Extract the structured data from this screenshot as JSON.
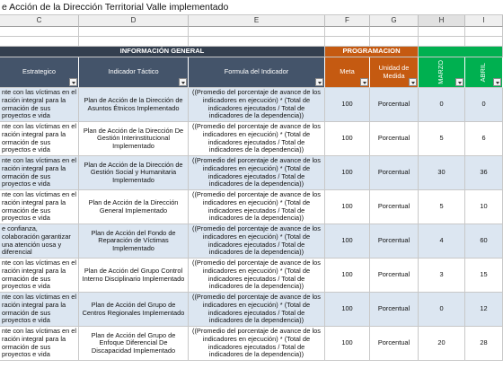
{
  "title": "e Acción de la Dirección  Territorial Valle implementado",
  "column_letters": [
    "C",
    "D",
    "E",
    "F",
    "G",
    "H",
    "I"
  ],
  "group_headers": [
    "INFORMACIÓN GENERAL",
    "PROGRAMACION"
  ],
  "headers": [
    "Estrategico",
    "Indicador Táctico",
    "Formula del Indicador",
    "Meta",
    "Unidad de Medida",
    "MARZO",
    "ABRIL"
  ],
  "rows": [
    [
      "nte con las víctimas en el ración integral para la ormación de sus proyectos e vida",
      "Plan de Acción de la Dirección de Asuntos Étnicos Implementado",
      "((Promedio del porcentaje de avance de los indicadores en ejecución) * (Total de indicadores ejecutados / Total de indicadores de la dependencia))",
      100,
      "Porcentual",
      0,
      0
    ],
    [
      "nte con las víctimas en el ración integral para la ormación de sus proyectos e vida",
      "Plan de Acción de la Dirección De Gestión Interinstitucional Implementado",
      "((Promedio del porcentaje de avance de los indicadores en ejecución) * (Total de indicadores ejecutados / Total de indicadores de la dependencia))",
      100,
      "Porcentual",
      5,
      6
    ],
    [
      "nte con las víctimas en el ración integral para la ormación de sus proyectos e vida",
      "Plan de Acción de la Dirección de Gestión Social y Humanitaria Implementado",
      "((Promedio del porcentaje de avance de los indicadores en ejecución) * (Total de indicadores ejecutados / Total de indicadores de la dependencia))",
      100,
      "Porcentual",
      30,
      36
    ],
    [
      "nte con las víctimas en el ración integral para la ormación de sus proyectos e vida",
      "Plan de Acción de la Dirección General Implementado",
      "((Promedio del porcentaje de avance de los indicadores en ejecución) * (Total de indicadores ejecutados / Total de indicadores de la dependencia))",
      100,
      "Porcentual",
      5,
      10
    ],
    [
      "e confianza, colaboración garantizar una atención uosa y diferencial",
      "Plan de Acción del Fondo de Reparación de Víctimas Implementado",
      "((Promedio del porcentaje de avance de los indicadores en ejecución) * (Total de indicadores ejecutados / Total de indicadores de la dependencia))",
      100,
      "Porcentual",
      4,
      60
    ],
    [
      "nte con las víctimas en el ración integral para la ormación de sus proyectos e vida",
      "Plan de Acción del Grupo Control Interno Disciplinario Implementado",
      "((Promedio del porcentaje de avance de los indicadores en ejecución) * (Total de indicadores ejecutados / Total de indicadores de la dependencia))",
      100,
      "Porcentual",
      3,
      15
    ],
    [
      "nte con las víctimas en el ración integral para la ormación de sus proyectos e vida",
      "Plan de Acción del Grupo de Centros Regionales Implementado",
      "((Promedio del porcentaje de avance de los indicadores en ejecución) * (Total de indicadores ejecutados / Total de indicadores de la dependencia))",
      100,
      "Porcentual",
      0,
      12
    ],
    [
      "nte con las víctimas en el ración integral para la ormación de sus proyectos e vida",
      "Plan de Acción del Grupo de Enfoque Diferencial De Discapacidad Implementado",
      "((Promedio del porcentaje de avance de los indicadores en ejecución) * (Total de indicadores ejecutados / Total de indicadores de la dependencia))",
      100,
      "Porcentual",
      20,
      28
    ]
  ]
}
